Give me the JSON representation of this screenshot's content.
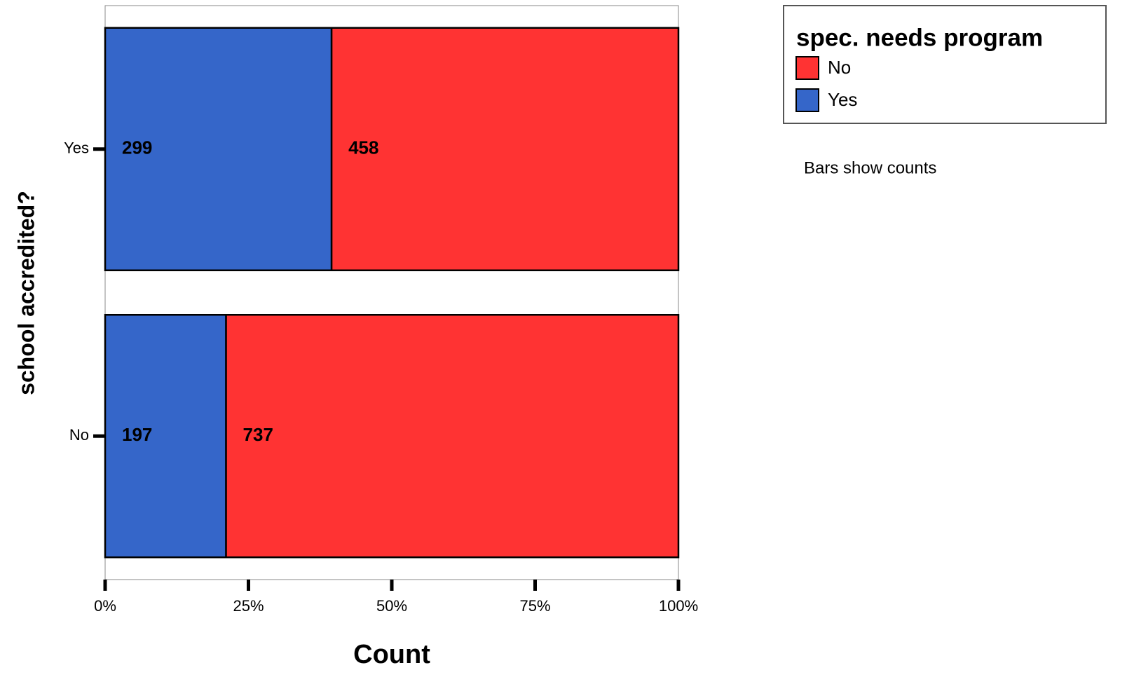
{
  "chart_data": {
    "type": "bar",
    "orientation": "horizontal",
    "stack": "percent",
    "x_label": "Count",
    "y_label": "school accredited?",
    "legend_title": "spec. needs program",
    "annotation": "Bars show counts",
    "categories": [
      "Yes",
      "No"
    ],
    "series": [
      {
        "name": "No",
        "color": "#ff3333",
        "values": [
          458,
          737
        ]
      },
      {
        "name": "Yes",
        "color": "#3566c9",
        "values": [
          299,
          197
        ]
      }
    ],
    "xlim": [
      0,
      100
    ],
    "xticks": [
      {
        "value": 0,
        "label": "0%"
      },
      {
        "value": 25,
        "label": "25%"
      },
      {
        "value": 50,
        "label": "50%"
      },
      {
        "value": 75,
        "label": "75%"
      },
      {
        "value": 100,
        "label": "100%"
      }
    ],
    "legend": "top-right"
  }
}
